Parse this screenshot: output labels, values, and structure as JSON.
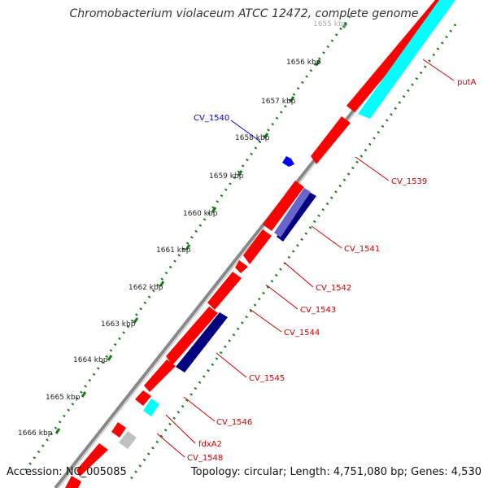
{
  "title": "Chromobacterium violaceum ATCC 12472, complete genome",
  "footer": {
    "accession": "Accession: NC_005085",
    "summary": "Topology: circular; Length: 4,751,080 bp; Genes: 4,530"
  },
  "ticks": [
    "1655 kbp",
    "1656 kbp",
    "1657 kbp",
    "1658 kbp",
    "1659 kbp",
    "1660 kbp",
    "1661 kbp",
    "1662 kbp",
    "1663 kbp",
    "1664 kbp",
    "1665 kbp",
    "1666 kbp"
  ],
  "labels": {
    "putA": "putA",
    "CV_1539": "CV_1539",
    "CV_1540": "CV_1540",
    "CV_1541": "CV_1541",
    "CV_1542": "CV_1542",
    "CV_1543": "CV_1543",
    "CV_1544": "CV_1544",
    "CV_1545": "CV_1545",
    "CV_1546": "CV_1546",
    "fdxA2": "fdxA2",
    "CV_1548": "CV_1548"
  },
  "colors": {
    "forward_gene": "#ff0000",
    "reverse_gene": "#00ffff",
    "navy_gene": "#000080",
    "blue_gene": "#0000ff",
    "purple_gene": "#6666cc",
    "pseudo_gene": "#c0c0c0",
    "backbone": "#888888",
    "tick": "#1a7a1a",
    "label_red": "#cc0000",
    "label_blue": "#0000cc"
  }
}
